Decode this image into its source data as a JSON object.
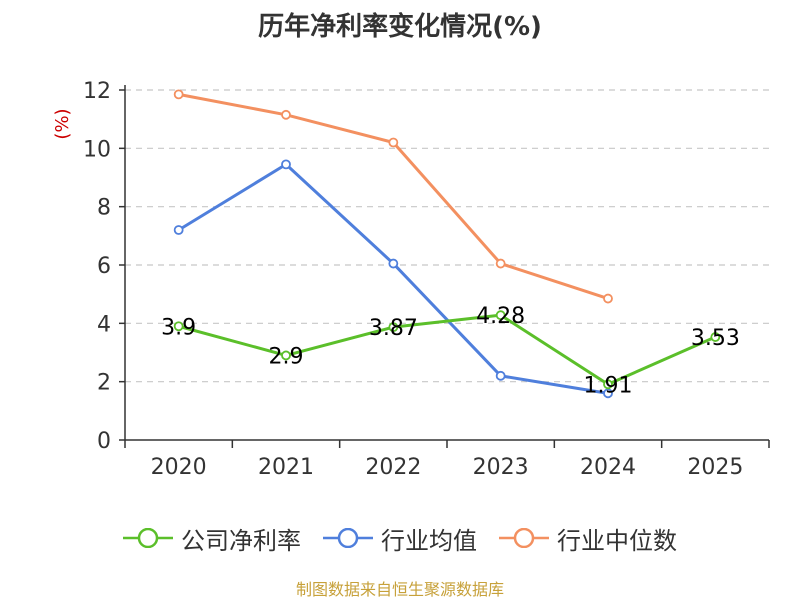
{
  "chart_data": {
    "type": "line",
    "title": "历年净利率变化情况(%)",
    "ylabel": "(%)",
    "xlabel": "",
    "categories": [
      "2020",
      "2021",
      "2022",
      "2023",
      "2024",
      "2025"
    ],
    "ylim": [
      0,
      12
    ],
    "yticks": [
      0,
      2,
      4,
      6,
      8,
      10,
      12
    ],
    "grid": true,
    "legend_position": "bottom",
    "series": [
      {
        "name": "公司净利率",
        "color": "#5bbf2a",
        "values": [
          3.9,
          2.9,
          3.87,
          4.28,
          1.91,
          3.53
        ],
        "show_labels": true
      },
      {
        "name": "行业均值",
        "color": "#4f7fdc",
        "values": [
          7.2,
          9.45,
          6.05,
          2.2,
          1.6,
          null
        ],
        "show_labels": false
      },
      {
        "name": "行业中位数",
        "color": "#f39060",
        "values": [
          11.85,
          11.15,
          10.2,
          6.05,
          4.85,
          null
        ],
        "show_labels": false
      }
    ]
  },
  "footer": "制图数据来自恒生聚源数据库"
}
